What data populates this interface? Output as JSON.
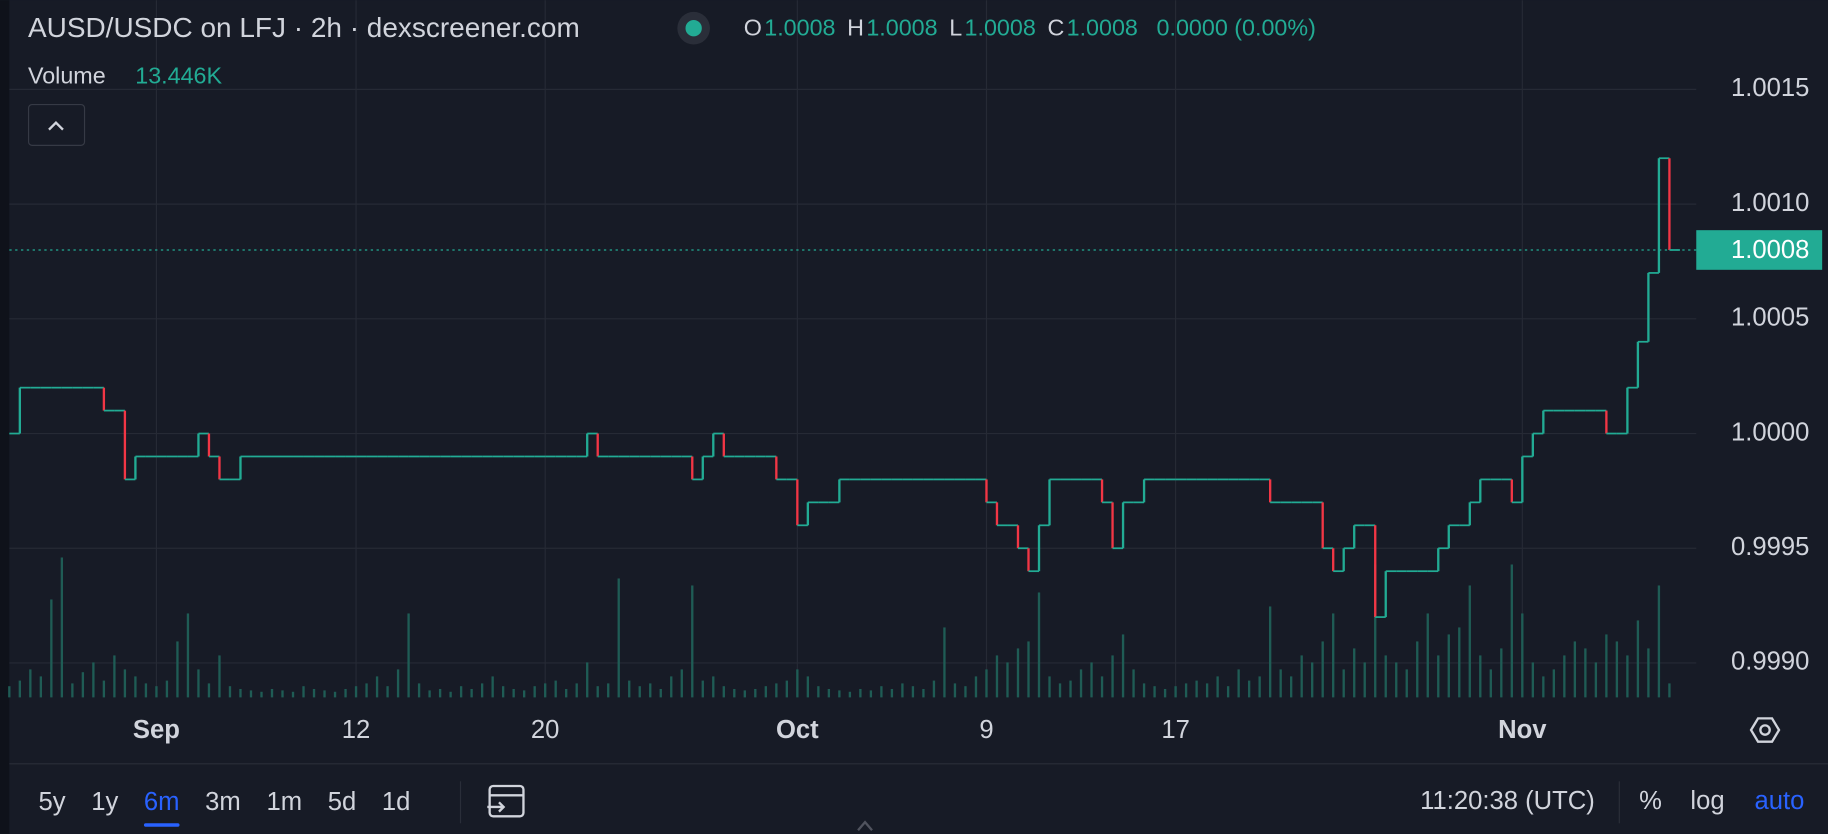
{
  "header": {
    "title": "AUSD/USDC on LFJ · 2h · dexscreener.com",
    "ohlc": [
      {
        "key": "O",
        "value": "1.0008"
      },
      {
        "key": "H",
        "value": "1.0008"
      },
      {
        "key": "L",
        "value": "1.0008"
      },
      {
        "key": "C",
        "value": "1.0008"
      }
    ],
    "change": "0.0000 (0.00%)",
    "volume_label": "Volume",
    "volume_value": "13.446K"
  },
  "chart_data": {
    "type": "step",
    "values": [
      1.0,
      1.0002,
      1.0002,
      1.0002,
      1.0002,
      1.0002,
      1.0002,
      1.0002,
      1.0002,
      1.0001,
      1.0001,
      0.9998,
      0.9999,
      0.9999,
      0.9999,
      0.9999,
      0.9999,
      0.9999,
      1.0,
      0.9999,
      0.9998,
      0.9998,
      0.9999,
      0.9999,
      0.9999,
      0.9999,
      0.9999,
      0.9999,
      0.9999,
      0.9999,
      0.9999,
      0.9999,
      0.9999,
      0.9999,
      0.9999,
      0.9999,
      0.9999,
      0.9999,
      0.9999,
      0.9999,
      0.9999,
      0.9999,
      0.9999,
      0.9999,
      0.9999,
      0.9999,
      0.9999,
      0.9999,
      0.9999,
      0.9999,
      0.9999,
      0.9999,
      0.9999,
      0.9999,
      0.9999,
      1.0,
      0.9999,
      0.9999,
      0.9999,
      0.9999,
      0.9999,
      0.9999,
      0.9999,
      0.9999,
      0.9999,
      0.9998,
      0.9999,
      1.0,
      0.9999,
      0.9999,
      0.9999,
      0.9999,
      0.9999,
      0.9998,
      0.9998,
      0.9996,
      0.9997,
      0.9997,
      0.9997,
      0.9998,
      0.9998,
      0.9998,
      0.9998,
      0.9998,
      0.9998,
      0.9998,
      0.9998,
      0.9998,
      0.9998,
      0.9998,
      0.9998,
      0.9998,
      0.9998,
      0.9997,
      0.9996,
      0.9996,
      0.9995,
      0.9994,
      0.9996,
      0.9998,
      0.9998,
      0.9998,
      0.9998,
      0.9998,
      0.9997,
      0.9995,
      0.9997,
      0.9997,
      0.9998,
      0.9998,
      0.9998,
      0.9998,
      0.9998,
      0.9998,
      0.9998,
      0.9998,
      0.9998,
      0.9998,
      0.9998,
      0.9998,
      0.9997,
      0.9997,
      0.9997,
      0.9997,
      0.9997,
      0.9995,
      0.9994,
      0.9995,
      0.9996,
      0.9996,
      0.9992,
      0.9994,
      0.9994,
      0.9994,
      0.9994,
      0.9994,
      0.9995,
      0.9996,
      0.9996,
      0.9997,
      0.9998,
      0.9998,
      0.9998,
      0.9997,
      0.9999,
      1.0,
      1.0001,
      1.0001,
      1.0001,
      1.0001,
      1.0001,
      1.0001,
      1.0,
      1.0,
      1.0002,
      1.0004,
      1.0007,
      1.0012,
      1.0008
    ],
    "volume": [
      8,
      12,
      20,
      15,
      70,
      100,
      10,
      18,
      25,
      12,
      30,
      20,
      15,
      10,
      8,
      12,
      40,
      60,
      20,
      10,
      30,
      8,
      6,
      5,
      4,
      6,
      5,
      4,
      8,
      6,
      5,
      4,
      6,
      8,
      10,
      15,
      8,
      20,
      60,
      10,
      5,
      6,
      4,
      8,
      6,
      10,
      15,
      8,
      6,
      5,
      8,
      10,
      12,
      6,
      10,
      25,
      8,
      10,
      85,
      12,
      8,
      10,
      6,
      15,
      20,
      80,
      12,
      15,
      8,
      6,
      5,
      6,
      8,
      10,
      12,
      20,
      15,
      8,
      6,
      5,
      4,
      6,
      5,
      8,
      6,
      10,
      8,
      6,
      12,
      50,
      10,
      8,
      15,
      20,
      30,
      25,
      35,
      40,
      75,
      15,
      10,
      12,
      20,
      25,
      15,
      30,
      45,
      20,
      10,
      8,
      6,
      8,
      10,
      12,
      10,
      15,
      8,
      20,
      12,
      15,
      65,
      20,
      15,
      30,
      25,
      40,
      60,
      20,
      35,
      25,
      95,
      30,
      25,
      20,
      40,
      60,
      30,
      45,
      50,
      80,
      30,
      20,
      35,
      95,
      60,
      25,
      15,
      20,
      30,
      40,
      35,
      25,
      45,
      40,
      30,
      55,
      35,
      80,
      10
    ],
    "up_color": "#22ab94",
    "down_color": "#f23645",
    "volume_color": "#1f5c55",
    "last_price": {
      "value": 1.0008,
      "label": "1.0008"
    },
    "xlim": [
      0,
      160
    ],
    "ylim": [
      0.99885,
      1.00166
    ],
    "xticks": [
      {
        "value": 14,
        "label": "Sep"
      },
      {
        "value": 33,
        "label": "12"
      },
      {
        "value": 51,
        "label": "20"
      },
      {
        "value": 75,
        "label": "Oct"
      },
      {
        "value": 93,
        "label": "9"
      },
      {
        "value": 111,
        "label": "17"
      },
      {
        "value": 144,
        "label": "Nov"
      }
    ],
    "yticks": [
      {
        "value": 0.999,
        "label": "0.9990"
      },
      {
        "value": 0.9995,
        "label": "0.9995"
      },
      {
        "value": 1.0,
        "label": "1.0000"
      },
      {
        "value": 1.0005,
        "label": "1.0005"
      },
      {
        "value": 1.001,
        "label": "1.0010"
      },
      {
        "value": 1.0015,
        "label": "1.0015"
      }
    ],
    "grid": true
  },
  "toolbar": {
    "ranges": [
      "5y",
      "1y",
      "6m",
      "3m",
      "1m",
      "5d",
      "1d"
    ],
    "active": 2,
    "time": "11:20:38 (UTC)",
    "options": [
      "%",
      "log",
      "auto"
    ]
  }
}
